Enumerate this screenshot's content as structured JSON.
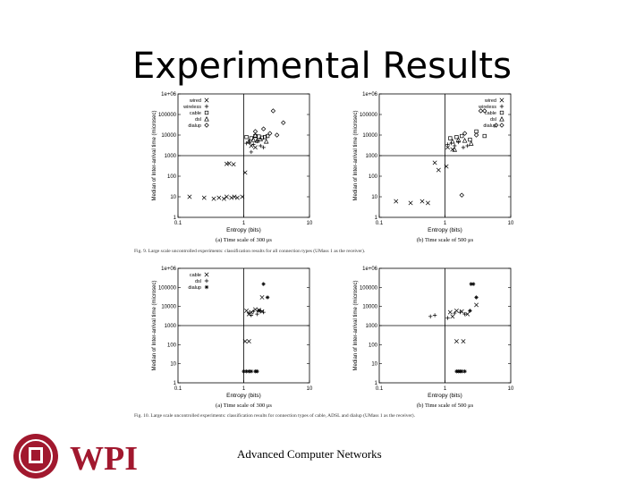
{
  "slide": {
    "title": "Experimental Results",
    "footer": "Advanced Computer Networks",
    "logo_text": "WPI"
  },
  "figures": {
    "fig9_caption": "Fig. 9.  Large scale uncontrolled experiments: classification results for all connection types (UMass 1 as the receiver).",
    "fig10_caption": "Fig. 10.  Large scale uncontrolled experiments: classification results for connection types of cable, ADSL and dialup (UMass 1 as the receiver)."
  },
  "chart_data": [
    {
      "type": "scatter",
      "caption": "(a) Time scale of 300 μs",
      "xlabel": "Entropy (bits)",
      "ylabel": "Median of Inter-arrival time (microsec)",
      "xscale": "log",
      "yscale": "log",
      "xlim": [
        0.1,
        10
      ],
      "ylim": [
        1,
        1000000
      ],
      "xticks": [
        "0.1",
        "1",
        "10"
      ],
      "yticks": [
        "1",
        "10",
        "100",
        "1000",
        "10000",
        "100000",
        "1e+06"
      ],
      "hline": 1000,
      "vline": 1,
      "legend_position": "top-left",
      "series": [
        {
          "name": "wired",
          "marker": "x",
          "points": [
            [
              0.15,
              10
            ],
            [
              0.25,
              9
            ],
            [
              0.35,
              8
            ],
            [
              0.42,
              9
            ],
            [
              0.5,
              8
            ],
            [
              0.55,
              10
            ],
            [
              0.65,
              9
            ],
            [
              0.72,
              10
            ],
            [
              0.8,
              9
            ],
            [
              0.95,
              10
            ],
            [
              0.55,
              400
            ],
            [
              0.6,
              420
            ],
            [
              0.7,
              380
            ],
            [
              1.05,
              150
            ],
            [
              1.3,
              3000
            ],
            [
              1.5,
              2500
            ]
          ]
        },
        {
          "name": "wireless",
          "marker": "+",
          "points": [
            [
              1.1,
              4000
            ],
            [
              1.2,
              4500
            ],
            [
              1.4,
              3500
            ],
            [
              1.6,
              5000
            ],
            [
              1.8,
              3000
            ],
            [
              2.0,
              2500
            ],
            [
              1.3,
              1500
            ]
          ]
        },
        {
          "name": "cable",
          "marker": "square",
          "points": [
            [
              1.1,
              8000
            ],
            [
              1.3,
              7000
            ],
            [
              1.5,
              9000
            ],
            [
              1.7,
              8500
            ],
            [
              1.9,
              7500
            ],
            [
              2.1,
              8000
            ],
            [
              2.3,
              9000
            ]
          ]
        },
        {
          "name": "dsl",
          "marker": "triangle",
          "points": [
            [
              1.2,
              5000
            ],
            [
              1.4,
              6000
            ],
            [
              1.6,
              5500
            ],
            [
              1.8,
              6500
            ],
            [
              2.2,
              5000
            ],
            [
              1.5,
              10000
            ]
          ]
        },
        {
          "name": "dialup",
          "marker": "diamond",
          "points": [
            [
              1.5,
              15000
            ],
            [
              2.0,
              20000
            ],
            [
              2.8,
              150000
            ],
            [
              4.0,
              40000
            ],
            [
              3.2,
              10000
            ],
            [
              2.5,
              12000
            ]
          ]
        }
      ]
    },
    {
      "type": "scatter",
      "caption": "(b) Time scale of 500 μs",
      "xlabel": "Entropy (bits)",
      "ylabel": "Median of Inter-arrival time (microsec)",
      "xscale": "log",
      "yscale": "log",
      "xlim": [
        0.1,
        10
      ],
      "ylim": [
        1,
        1000000
      ],
      "xticks": [
        "0.1",
        "1",
        "10"
      ],
      "yticks": [
        "1",
        "10",
        "100",
        "1000",
        "10000",
        "100000",
        "1e+06"
      ],
      "hline": 1000,
      "vline": 1,
      "legend_position": "top-right",
      "series": [
        {
          "name": "wired",
          "marker": "x",
          "points": [
            [
              0.18,
              6
            ],
            [
              0.3,
              5
            ],
            [
              0.45,
              6
            ],
            [
              0.55,
              5
            ],
            [
              0.7,
              450
            ],
            [
              0.8,
              200
            ],
            [
              1.05,
              300
            ],
            [
              1.1,
              2500
            ],
            [
              1.3,
              2000
            ]
          ]
        },
        {
          "name": "wireless",
          "marker": "+",
          "points": [
            [
              1.1,
              3500
            ],
            [
              1.25,
              4000
            ],
            [
              1.4,
              3000
            ],
            [
              1.6,
              4500
            ],
            [
              1.9,
              2500
            ],
            [
              2.2,
              3000
            ]
          ]
        },
        {
          "name": "cable",
          "marker": "square",
          "points": [
            [
              1.2,
              7000
            ],
            [
              1.5,
              8000
            ],
            [
              1.8,
              9000
            ],
            [
              2.4,
              6000
            ],
            [
              3.0,
              15000
            ],
            [
              4.0,
              9000
            ]
          ]
        },
        {
          "name": "dsl",
          "marker": "triangle",
          "points": [
            [
              1.3,
              5000
            ],
            [
              1.6,
              6000
            ],
            [
              2.0,
              5500
            ],
            [
              2.5,
              4000
            ],
            [
              1.4,
              2000
            ]
          ]
        },
        {
          "name": "dialup",
          "marker": "diamond",
          "points": [
            [
              2.0,
              12000
            ],
            [
              3.5,
              150000
            ],
            [
              4.0,
              150000
            ],
            [
              6.0,
              30000
            ],
            [
              3.0,
              10000
            ],
            [
              1.8,
              12
            ]
          ]
        }
      ]
    },
    {
      "type": "scatter",
      "caption": "(a) Time scale of 300 μs",
      "xlabel": "Entropy (bits)",
      "ylabel": "Median of Inter-arrival time (microsec)",
      "xscale": "log",
      "yscale": "log",
      "xlim": [
        0.1,
        10
      ],
      "ylim": [
        1,
        1000000
      ],
      "xticks": [
        "0.1",
        "1",
        "10"
      ],
      "yticks": [
        "1",
        "10",
        "100",
        "1000",
        "10000",
        "100000",
        "1e+06"
      ],
      "hline": 1000,
      "vline": 1,
      "legend_position": "top-left",
      "series": [
        {
          "name": "cable",
          "marker": "x",
          "points": [
            [
              1.1,
              6000
            ],
            [
              1.3,
              5000
            ],
            [
              1.5,
              7000
            ],
            [
              1.7,
              6500
            ],
            [
              1.9,
              5500
            ],
            [
              1.2,
              4000
            ],
            [
              1.05,
              150
            ],
            [
              1.2,
              150
            ],
            [
              1.9,
              30000
            ]
          ]
        },
        {
          "name": "dsl",
          "marker": "+",
          "points": [
            [
              1.2,
              4500
            ],
            [
              1.4,
              5500
            ],
            [
              1.6,
              4000
            ],
            [
              1.8,
              6000
            ],
            [
              2.0,
              5000
            ],
            [
              1.3,
              3500
            ]
          ]
        },
        {
          "name": "dialup",
          "marker": "asterisk",
          "points": [
            [
              1.0,
              4
            ],
            [
              1.1,
              4
            ],
            [
              1.2,
              4
            ],
            [
              1.3,
              4
            ],
            [
              1.5,
              4
            ],
            [
              1.6,
              4
            ],
            [
              2.0,
              150000
            ],
            [
              2.3,
              30000
            ],
            [
              1.7,
              6000
            ]
          ]
        }
      ]
    },
    {
      "type": "scatter",
      "caption": "(b) Time scale of 500 μs",
      "xlabel": "Entropy (bits)",
      "ylabel": "Median of Inter-arrival time (microsec)",
      "xscale": "log",
      "yscale": "log",
      "xlim": [
        0.1,
        10
      ],
      "ylim": [
        1,
        1000000
      ],
      "xticks": [
        "0.1",
        "1",
        "10"
      ],
      "yticks": [
        "1",
        "10",
        "100",
        "1000",
        "10000",
        "100000",
        "1e+06"
      ],
      "hline": 1000,
      "vline": 1,
      "legend_position": "none",
      "series": [
        {
          "name": "cable",
          "marker": "x",
          "points": [
            [
              1.2,
              5000
            ],
            [
              1.5,
              6000
            ],
            [
              1.8,
              5500
            ],
            [
              2.2,
              4000
            ],
            [
              1.3,
              3000
            ],
            [
              1.5,
              150
            ],
            [
              1.9,
              150
            ],
            [
              3.0,
              12000
            ]
          ]
        },
        {
          "name": "dsl",
          "marker": "+",
          "points": [
            [
              0.6,
              3000
            ],
            [
              0.7,
              3500
            ],
            [
              1.4,
              4500
            ],
            [
              1.7,
              5000
            ],
            [
              2.0,
              4000
            ],
            [
              1.1,
              2500
            ]
          ]
        },
        {
          "name": "dialup",
          "marker": "asterisk",
          "points": [
            [
              1.5,
              4
            ],
            [
              1.6,
              4
            ],
            [
              1.7,
              4
            ],
            [
              1.8,
              4
            ],
            [
              2.0,
              4
            ],
            [
              2.5,
              150000
            ],
            [
              2.7,
              150000
            ],
            [
              3.0,
              30000
            ],
            [
              2.4,
              6000
            ]
          ]
        }
      ]
    }
  ]
}
